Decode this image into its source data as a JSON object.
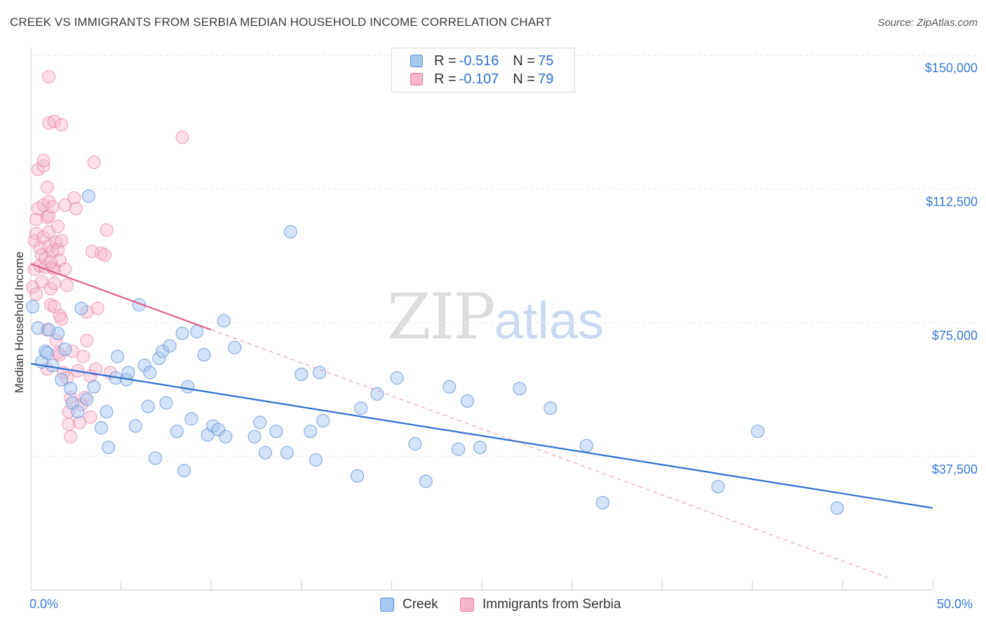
{
  "title": "CREEK VS IMMIGRANTS FROM SERBIA MEDIAN HOUSEHOLD INCOME CORRELATION CHART",
  "source": "Source: ZipAtlas.com",
  "watermark": {
    "zip": "ZIP",
    "atlas": "atlas"
  },
  "legend": {
    "creek": {
      "r_label": "R =",
      "r_value": "-0.516",
      "n_label": "N =",
      "n_value": "75"
    },
    "serbia": {
      "r_label": "R =",
      "r_value": "-0.107",
      "n_label": "N =",
      "n_value": "79"
    }
  },
  "colors": {
    "creek_fill": "#a9c8f0",
    "creek_stroke": "#5b8fd6",
    "creek_line": "#2f6fd0",
    "serbia_fill": "#f6b5c9",
    "serbia_stroke": "#e77a9d",
    "serbia_line": "#e0608a",
    "grid": "#e6e6e6",
    "axis_text": "#3b78d8"
  },
  "chart_data": {
    "type": "scatter",
    "title": "CREEK VS IMMIGRANTS FROM SERBIA MEDIAN HOUSEHOLD INCOME CORRELATION CHART",
    "xlabel": "",
    "ylabel": "Median Household Income",
    "xlim": [
      0,
      50
    ],
    "ylim": [
      0,
      153000
    ],
    "x_tick_labels": [
      "0.0%",
      "50.0%"
    ],
    "y_ticks": [
      37500,
      75000,
      112500,
      150000
    ],
    "y_tick_labels": [
      "$37,500",
      "$75,000",
      "$112,500",
      "$150,000"
    ],
    "series": [
      {
        "name": "Creek",
        "points": [
          [
            0.1,
            79500
          ],
          [
            0.4,
            73500
          ],
          [
            0.6,
            64000
          ],
          [
            0.8,
            67000
          ],
          [
            0.9,
            66500
          ],
          [
            1.2,
            63000
          ],
          [
            1.5,
            72000
          ],
          [
            1.7,
            59000
          ],
          [
            1.9,
            67500
          ],
          [
            2.2,
            56500
          ],
          [
            2.3,
            52500
          ],
          [
            2.6,
            50000
          ],
          [
            2.8,
            79000
          ],
          [
            3.1,
            53500
          ],
          [
            3.2,
            110500
          ],
          [
            3.5,
            57000
          ],
          [
            3.9,
            45500
          ],
          [
            4.2,
            50000
          ],
          [
            4.3,
            40000
          ],
          [
            4.7,
            59500
          ],
          [
            4.8,
            65500
          ],
          [
            5.3,
            59000
          ],
          [
            5.4,
            61000
          ],
          [
            5.8,
            46000
          ],
          [
            6.0,
            80000
          ],
          [
            6.3,
            63000
          ],
          [
            6.5,
            51500
          ],
          [
            6.6,
            61000
          ],
          [
            6.9,
            37000
          ],
          [
            7.1,
            65000
          ],
          [
            7.3,
            67000
          ],
          [
            7.5,
            52500
          ],
          [
            7.7,
            68500
          ],
          [
            8.1,
            44500
          ],
          [
            8.4,
            72000
          ],
          [
            8.5,
            33500
          ],
          [
            8.7,
            57000
          ],
          [
            8.9,
            48000
          ],
          [
            9.2,
            72500
          ],
          [
            9.6,
            66000
          ],
          [
            9.8,
            43500
          ],
          [
            10.1,
            46000
          ],
          [
            10.4,
            45000
          ],
          [
            10.7,
            75500
          ],
          [
            10.8,
            43000
          ],
          [
            11.3,
            68000
          ],
          [
            12.4,
            43000
          ],
          [
            12.7,
            47000
          ],
          [
            13.0,
            38500
          ],
          [
            13.6,
            44500
          ],
          [
            14.2,
            38500
          ],
          [
            14.4,
            100500
          ],
          [
            15.0,
            60500
          ],
          [
            15.5,
            44500
          ],
          [
            15.8,
            36500
          ],
          [
            16.0,
            61000
          ],
          [
            16.2,
            47500
          ],
          [
            18.1,
            32000
          ],
          [
            18.3,
            51000
          ],
          [
            19.2,
            55000
          ],
          [
            20.3,
            59500
          ],
          [
            21.3,
            41000
          ],
          [
            21.9,
            30500
          ],
          [
            23.2,
            57000
          ],
          [
            23.7,
            39500
          ],
          [
            24.2,
            53000
          ],
          [
            24.9,
            40000
          ],
          [
            27.1,
            56500
          ],
          [
            28.8,
            51000
          ],
          [
            30.8,
            40500
          ],
          [
            31.7,
            24500
          ],
          [
            38.1,
            29000
          ],
          [
            40.3,
            44500
          ],
          [
            44.7,
            23000
          ],
          [
            1.0,
            73000
          ]
        ],
        "trend": {
          "x": [
            0,
            50
          ],
          "y": [
            63500,
            23000
          ]
        }
      },
      {
        "name": "Immigrants from Serbia",
        "points": [
          [
            0.1,
            85000
          ],
          [
            0.2,
            90000
          ],
          [
            0.2,
            98000
          ],
          [
            0.3,
            83000
          ],
          [
            0.3,
            100000
          ],
          [
            0.3,
            104000
          ],
          [
            0.4,
            107000
          ],
          [
            0.4,
            118000
          ],
          [
            0.5,
            91000
          ],
          [
            0.5,
            96000
          ],
          [
            0.6,
            86500
          ],
          [
            0.6,
            94000
          ],
          [
            0.7,
            99000
          ],
          [
            0.7,
            108000
          ],
          [
            0.7,
            119000
          ],
          [
            0.7,
            120500
          ],
          [
            0.8,
            90500
          ],
          [
            0.8,
            93000
          ],
          [
            0.9,
            104500
          ],
          [
            0.9,
            113000
          ],
          [
            0.9,
            73000
          ],
          [
            1.0,
            96500
          ],
          [
            1.0,
            100500
          ],
          [
            1.0,
            105000
          ],
          [
            1.0,
            109000
          ],
          [
            1.0,
            131000
          ],
          [
            1.0,
            144000
          ],
          [
            1.1,
            80000
          ],
          [
            1.1,
            84500
          ],
          [
            1.2,
            90500
          ],
          [
            1.2,
            95000
          ],
          [
            1.2,
            107500
          ],
          [
            1.3,
            79500
          ],
          [
            1.3,
            86000
          ],
          [
            1.3,
            90000
          ],
          [
            1.3,
            131500
          ],
          [
            1.4,
            97500
          ],
          [
            1.4,
            70000
          ],
          [
            1.5,
            102000
          ],
          [
            1.5,
            66500
          ],
          [
            1.5,
            95500
          ],
          [
            1.6,
            77000
          ],
          [
            1.6,
            92500
          ],
          [
            1.7,
            76000
          ],
          [
            1.7,
            98000
          ],
          [
            1.7,
            130500
          ],
          [
            1.8,
            61000
          ],
          [
            1.9,
            108000
          ],
          [
            1.9,
            90000
          ],
          [
            2.0,
            85500
          ],
          [
            2.0,
            59500
          ],
          [
            2.1,
            46500
          ],
          [
            2.1,
            50000
          ],
          [
            2.2,
            54000
          ],
          [
            2.2,
            43000
          ],
          [
            2.3,
            67000
          ],
          [
            2.4,
            110000
          ],
          [
            2.5,
            107000
          ],
          [
            2.6,
            61500
          ],
          [
            2.7,
            47000
          ],
          [
            2.8,
            52000
          ],
          [
            3.0,
            54000
          ],
          [
            3.1,
            78000
          ],
          [
            3.1,
            70000
          ],
          [
            3.3,
            60000
          ],
          [
            3.3,
            48500
          ],
          [
            3.4,
            95000
          ],
          [
            3.5,
            120000
          ],
          [
            3.6,
            62000
          ],
          [
            3.7,
            79000
          ],
          [
            3.9,
            94500
          ],
          [
            4.1,
            94000
          ],
          [
            4.2,
            101000
          ],
          [
            4.4,
            61000
          ],
          [
            8.4,
            127000
          ],
          [
            1.6,
            66000
          ],
          [
            0.9,
            62000
          ],
          [
            2.9,
            65500
          ],
          [
            1.1,
            92000
          ]
        ],
        "trend": {
          "x": [
            0,
            10
          ],
          "y": [
            91500,
            73000
          ]
        },
        "trend_extension": {
          "x": [
            10,
            47.5
          ],
          "y": [
            73000,
            3500
          ]
        }
      }
    ]
  },
  "bottom_legend": {
    "creek": "Creek",
    "serbia": "Immigrants from Serbia"
  }
}
